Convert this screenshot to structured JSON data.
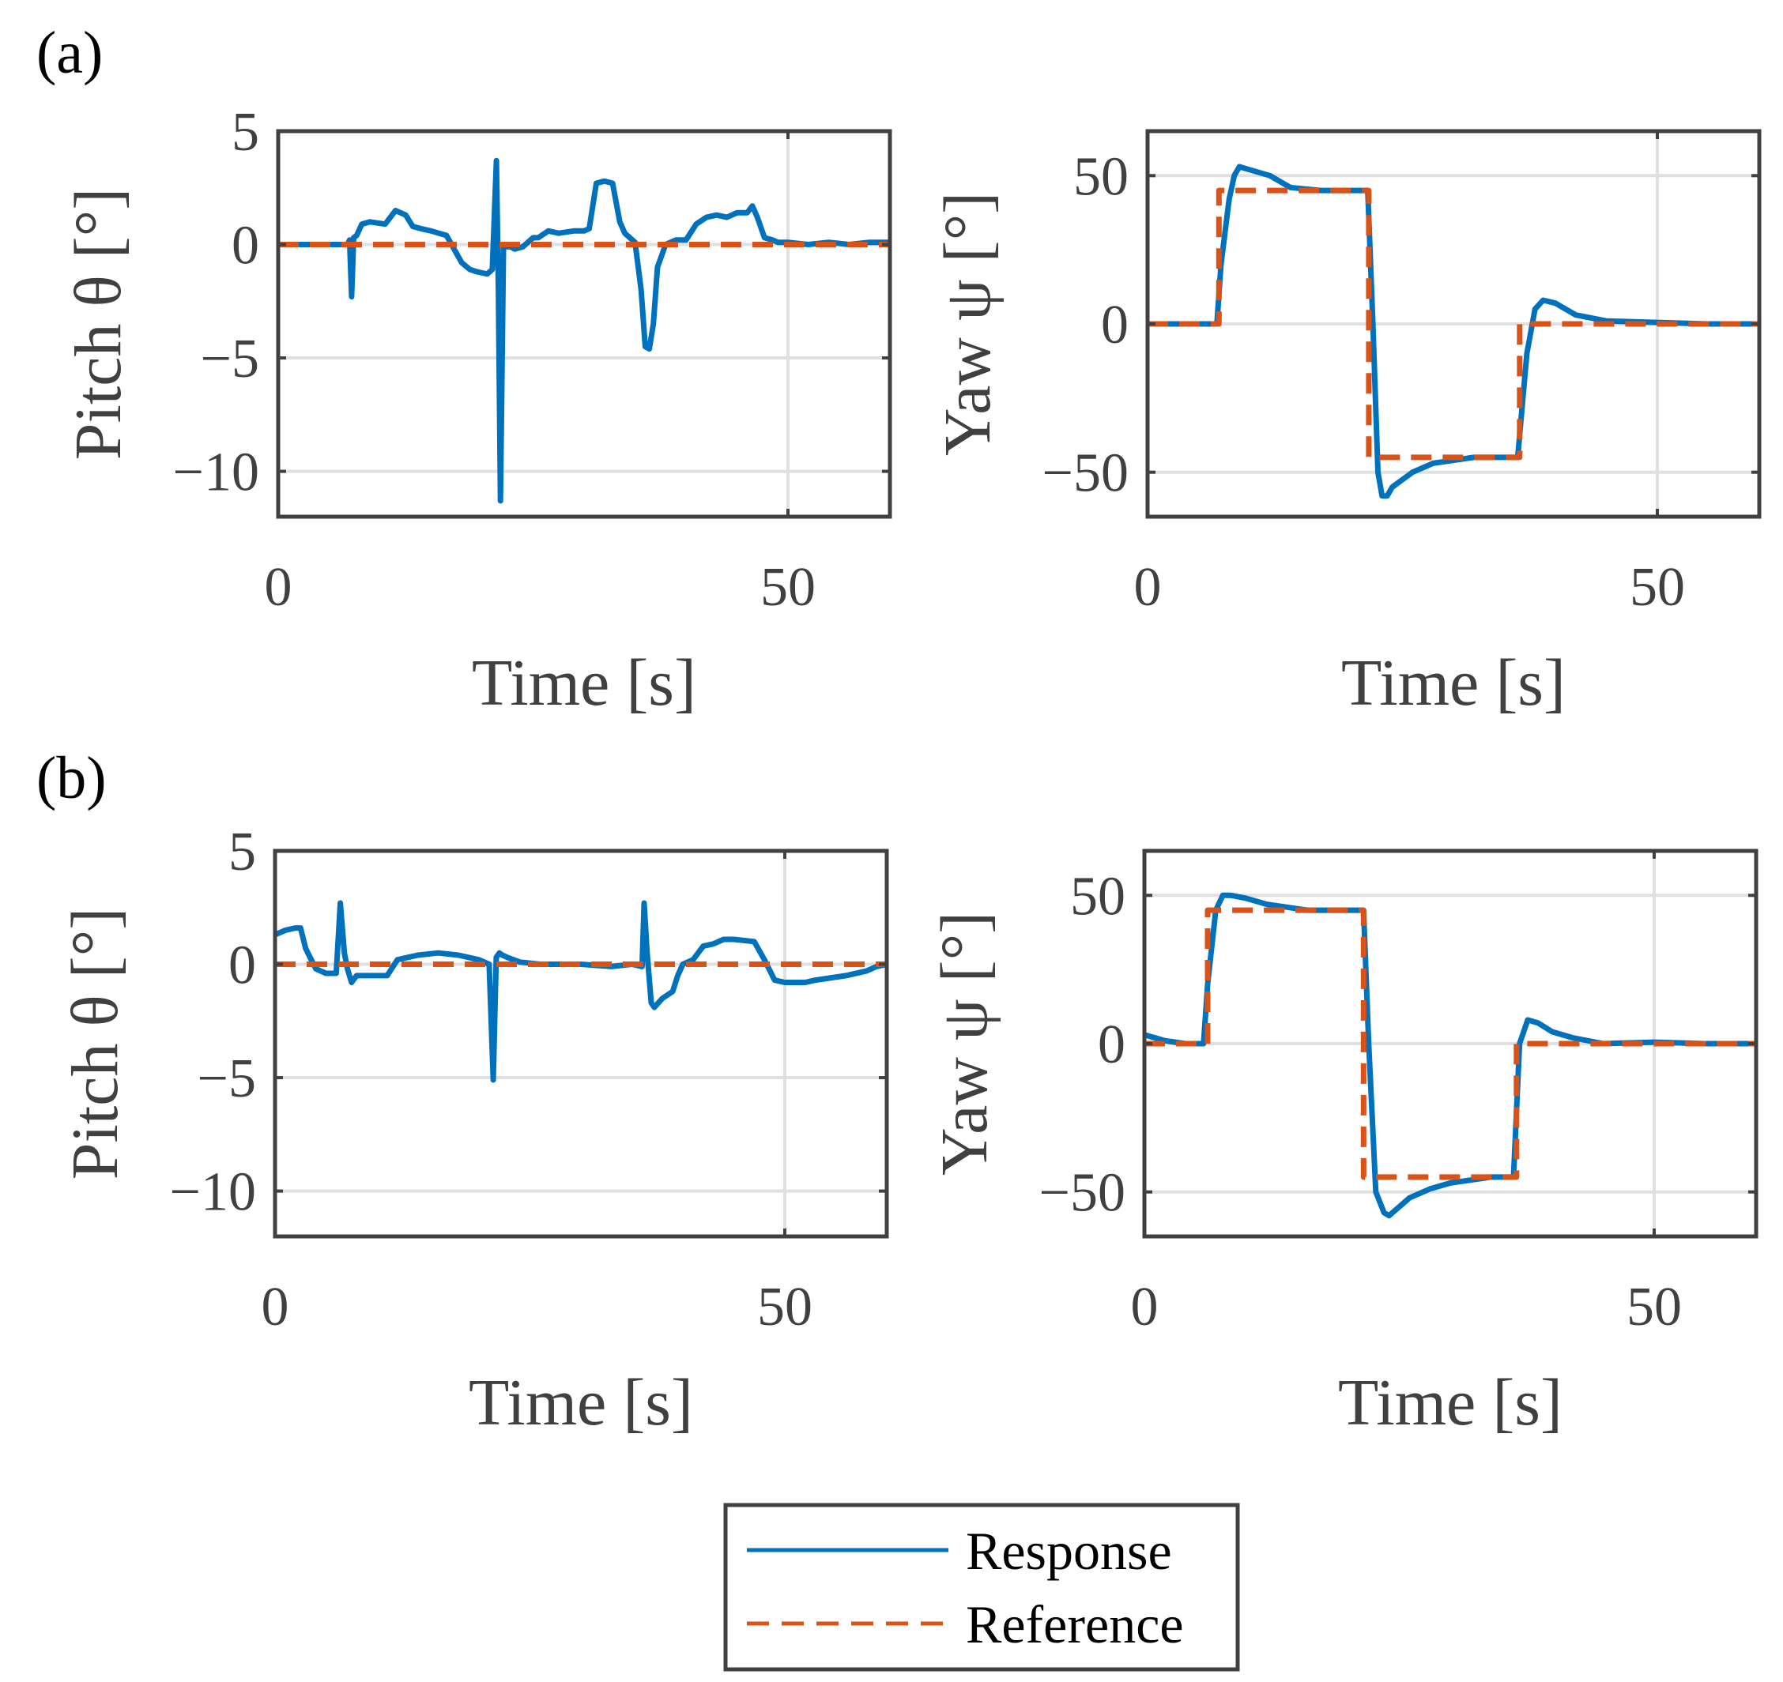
{
  "panels": [
    {
      "label": "(a)"
    },
    {
      "label": "(b)"
    }
  ],
  "colors": {
    "response": "#0072BD",
    "reference": "#D95319",
    "grid": "#E0E0E0",
    "axis": "#404040"
  },
  "legend": {
    "response_label": "Response",
    "reference_label": "Reference"
  },
  "chart_data": [
    {
      "type": "line",
      "panel": "(a)",
      "title": "",
      "xlabel": "Time [s]",
      "ylabel": "Pitch θ [°]",
      "xlim": [
        0,
        60
      ],
      "ylim": [
        -12,
        5
      ],
      "xticks": [
        0,
        50
      ],
      "xtick_labels": [
        "0",
        "50"
      ],
      "yticks": [
        5,
        0,
        -5,
        -10
      ],
      "ytick_labels": [
        "5",
        "0",
        "−5",
        "−10"
      ],
      "grid": true,
      "series": [
        {
          "name": "Response",
          "style": "solid",
          "x": [
            0,
            6.8,
            7.0,
            7.2,
            7.4,
            7.7,
            8.2,
            9,
            10.5,
            11.5,
            12.5,
            13.2,
            14,
            15,
            16.5,
            18,
            18.8,
            19.5,
            20.5,
            21,
            21.4,
            21.6,
            21.8,
            22.1,
            22.5,
            22.8,
            23.2,
            24,
            25,
            25.5,
            26.5,
            27.5,
            29,
            30,
            30.5,
            31.2,
            32,
            32.8,
            33.5,
            34,
            35,
            35.6,
            36,
            36.4,
            36.8,
            37.2,
            38,
            39,
            40,
            41,
            42,
            43,
            44,
            45,
            46,
            46.5,
            47,
            47.7,
            48.5,
            49,
            50,
            52,
            54,
            56,
            58,
            60
          ],
          "y": [
            0,
            0,
            0.2,
            -2.3,
            0.3,
            0.4,
            0.9,
            1.0,
            0.9,
            1.5,
            1.3,
            0.8,
            0.7,
            0.6,
            0.4,
            -0.8,
            -1.1,
            -1.2,
            -1.3,
            -1.1,
            3.7,
            -2,
            -11.3,
            0,
            -0.1,
            -0.1,
            -0.2,
            -0.1,
            0.3,
            0.3,
            0.6,
            0.5,
            0.6,
            0.6,
            0.7,
            2.7,
            2.8,
            2.7,
            1.0,
            0.5,
            0.1,
            -2.0,
            -4.5,
            -4.6,
            -3.5,
            -1.0,
            0.0,
            0.2,
            0.2,
            0.9,
            1.2,
            1.3,
            1.2,
            1.4,
            1.4,
            1.7,
            1.2,
            0.3,
            0.2,
            0.1,
            0.1,
            0.0,
            0.1,
            0.0,
            0.1,
            0.1
          ]
        },
        {
          "name": "Reference",
          "style": "dashed",
          "x": [
            0,
            60
          ],
          "y": [
            0,
            0
          ]
        }
      ]
    },
    {
      "type": "line",
      "panel": "(a)",
      "title": "",
      "xlabel": "Time [s]",
      "ylabel": "Yaw ψ [°]",
      "xlim": [
        0,
        60
      ],
      "ylim": [
        -65,
        65
      ],
      "xticks": [
        0,
        50
      ],
      "xtick_labels": [
        "0",
        "50"
      ],
      "yticks": [
        50,
        0,
        -50
      ],
      "ytick_labels": [
        "50",
        "0",
        "−50"
      ],
      "grid": true,
      "series": [
        {
          "name": "Response",
          "style": "solid",
          "x": [
            0,
            6.8,
            7.2,
            8,
            8.5,
            9,
            10,
            12,
            14,
            17,
            21,
            21.6,
            22.1,
            22.6,
            23,
            23.5,
            24,
            26,
            28,
            30,
            32,
            35,
            36.3,
            37.2,
            38,
            38.8,
            40,
            42,
            45,
            50,
            55,
            60
          ],
          "y": [
            0,
            0,
            20,
            42,
            50,
            53,
            52,
            50,
            46,
            45,
            45,
            45,
            0,
            -50,
            -58,
            -58,
            -55,
            -50,
            -47,
            -46,
            -45,
            -45,
            -45,
            -10,
            5,
            8,
            7,
            3,
            1,
            0.5,
            0,
            0
          ]
        },
        {
          "name": "Reference",
          "style": "dashed",
          "x": [
            0,
            7,
            7,
            21.7,
            21.7,
            36.5,
            36.5,
            60
          ],
          "y": [
            0,
            0,
            45,
            45,
            -45,
            -45,
            0,
            0
          ]
        }
      ]
    },
    {
      "type": "line",
      "panel": "(b)",
      "title": "",
      "xlabel": "Time [s]",
      "ylabel": "Pitch θ [°]",
      "xlim": [
        0,
        60
      ],
      "ylim": [
        -12,
        5
      ],
      "xticks": [
        0,
        50
      ],
      "xtick_labels": [
        "0",
        "50"
      ],
      "yticks": [
        5,
        0,
        -5,
        -10
      ],
      "ytick_labels": [
        "5",
        "0",
        "−5",
        "−10"
      ],
      "grid": true,
      "series": [
        {
          "name": "Response",
          "style": "solid",
          "x": [
            0,
            1,
            2,
            2.5,
            3,
            4,
            5,
            6,
            6.4,
            6.8,
            7.1,
            7.5,
            8,
            8.5,
            9,
            10,
            11,
            12,
            14,
            16,
            18,
            20,
            21,
            21.4,
            21.7,
            22,
            22.3,
            22.8,
            24,
            26,
            28,
            30,
            33,
            35,
            36,
            36.2,
            36.5,
            36.9,
            37.2,
            38,
            39,
            39.5,
            40,
            41,
            42,
            43,
            44,
            45,
            47,
            48,
            49,
            50,
            52,
            53,
            56,
            58,
            59,
            60
          ],
          "y": [
            1.3,
            1.5,
            1.6,
            1.6,
            0.7,
            -0.2,
            -0.4,
            -0.4,
            2.7,
            0.5,
            -0.2,
            -0.8,
            -0.5,
            -0.5,
            -0.5,
            -0.5,
            -0.5,
            0.2,
            0.4,
            0.5,
            0.4,
            0.2,
            0,
            -5.1,
            0.3,
            0.5,
            0.4,
            0.3,
            0.1,
            0.0,
            0.0,
            0.0,
            -0.1,
            0.0,
            -0.1,
            2.7,
            0.5,
            -1.7,
            -1.9,
            -1.5,
            -1.2,
            -0.5,
            0.0,
            0.2,
            0.8,
            0.9,
            1.1,
            1.1,
            1.0,
            0.2,
            -0.7,
            -0.8,
            -0.8,
            -0.7,
            -0.5,
            -0.3,
            -0.1,
            0.0
          ]
        },
        {
          "name": "Reference",
          "style": "dashed",
          "x": [
            0,
            60
          ],
          "y": [
            0,
            0
          ]
        }
      ]
    },
    {
      "type": "line",
      "panel": "(b)",
      "title": "",
      "xlabel": "Time [s]",
      "ylabel": "Yaw ψ [°]",
      "xlim": [
        0,
        60
      ],
      "ylim": [
        -65,
        65
      ],
      "xticks": [
        0,
        50
      ],
      "xtick_labels": [
        "0",
        "50"
      ],
      "yticks": [
        50,
        0,
        -50
      ],
      "ytick_labels": [
        "50",
        "0",
        "−50"
      ],
      "grid": true,
      "series": [
        {
          "name": "Response",
          "style": "solid",
          "x": [
            0,
            1,
            2,
            3,
            4,
            5.8,
            6.2,
            7,
            7.7,
            8.5,
            10,
            12,
            14,
            16,
            18,
            20,
            21,
            21.5,
            22,
            22.7,
            23.5,
            24,
            25,
            26,
            28,
            30,
            32,
            34,
            36.2,
            36.8,
            37.6,
            38.6,
            40,
            42,
            45,
            50,
            55,
            60
          ],
          "y": [
            3,
            2,
            1,
            0.5,
            0,
            0,
            20,
            45,
            50,
            50,
            49,
            47,
            46,
            45,
            45,
            45,
            45,
            45,
            0,
            -50,
            -57,
            -58,
            -55,
            -52,
            -49,
            -47,
            -46,
            -45,
            -45,
            0,
            8,
            7,
            4,
            2,
            0,
            0.5,
            0,
            0
          ]
        },
        {
          "name": "Reference",
          "style": "dashed",
          "x": [
            0,
            6.2,
            6.2,
            21.5,
            21.5,
            36.5,
            36.5,
            60
          ],
          "y": [
            0,
            0,
            45,
            45,
            -45,
            -45,
            0,
            0
          ]
        }
      ]
    }
  ]
}
